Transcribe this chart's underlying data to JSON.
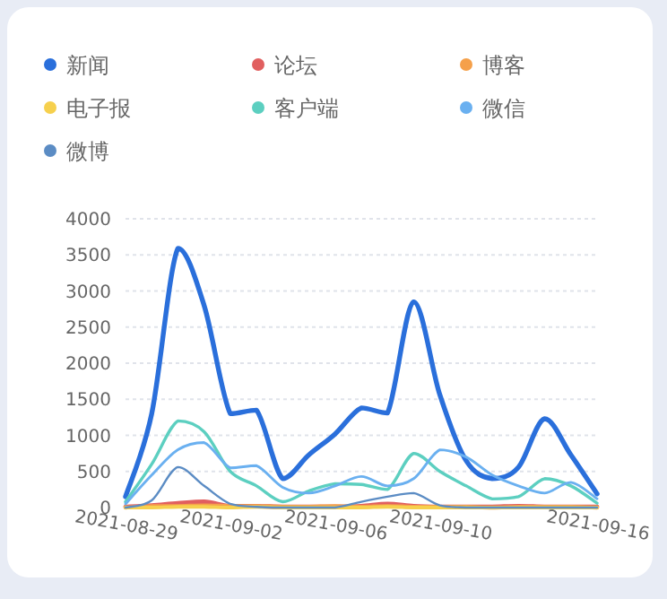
{
  "chart_data": {
    "type": "line",
    "legend": "top left",
    "grid": "y",
    "marker": "none",
    "line_style": "solid",
    "x": [
      "2021-08-29",
      "2021-08-30",
      "2021-08-31",
      "2021-09-01",
      "2021-09-02",
      "2021-09-03",
      "2021-09-04",
      "2021-09-05",
      "2021-09-06",
      "2021-09-07",
      "2021-09-08",
      "2021-09-09",
      "2021-09-10",
      "2021-09-11",
      "2021-09-12",
      "2021-09-13",
      "2021-09-14",
      "2021-09-15",
      "2021-09-16"
    ],
    "xlim": [
      "2021-08-29",
      "2021-09-16"
    ],
    "xticks": [
      "2021-08-29",
      "2021-09-02",
      "2021-09-06",
      "2021-09-10",
      "2021-09-16"
    ],
    "ylim": [
      0,
      4000
    ],
    "yticks": [
      0,
      500,
      1000,
      1500,
      2000,
      2500,
      3000,
      3500,
      4000
    ],
    "series": [
      {
        "name": "新闻",
        "color": "#2a6fdb",
        "values": [
          150,
          1300,
          3590,
          2800,
          1300,
          1350,
          400,
          730,
          1020,
          1380,
          1310,
          2850,
          1560,
          650,
          400,
          560,
          1230,
          730,
          190
        ]
      },
      {
        "name": "论坛",
        "color": "#e15f5f",
        "values": [
          10,
          30,
          60,
          80,
          20,
          20,
          10,
          10,
          10,
          20,
          50,
          20,
          10,
          10,
          10,
          20,
          10,
          10,
          10
        ]
      },
      {
        "name": "博客",
        "color": "#f5a04a",
        "values": [
          0,
          20,
          20,
          30,
          20,
          20,
          10,
          10,
          20,
          10,
          20,
          10,
          10,
          10,
          0,
          10,
          10,
          10,
          0
        ]
      },
      {
        "name": "电子报",
        "color": "#f6d04d",
        "values": [
          0,
          0,
          10,
          10,
          0,
          10,
          0,
          0,
          0,
          0,
          10,
          0,
          0,
          0,
          0,
          0,
          0,
          0,
          0
        ]
      },
      {
        "name": "客户端",
        "color": "#5ccfc0",
        "values": [
          80,
          600,
          1200,
          1050,
          500,
          300,
          80,
          230,
          330,
          320,
          250,
          750,
          500,
          300,
          120,
          150,
          400,
          300,
          60
        ]
      },
      {
        "name": "微信",
        "color": "#6ab0f0",
        "values": [
          50,
          450,
          800,
          900,
          550,
          580,
          280,
          200,
          300,
          430,
          300,
          400,
          800,
          700,
          450,
          300,
          200,
          350,
          120
        ]
      },
      {
        "name": "微博",
        "color": "#5b8cc4",
        "values": [
          0,
          100,
          560,
          300,
          50,
          10,
          0,
          0,
          0,
          80,
          150,
          200,
          30,
          0,
          0,
          0,
          0,
          0,
          0
        ]
      }
    ]
  }
}
